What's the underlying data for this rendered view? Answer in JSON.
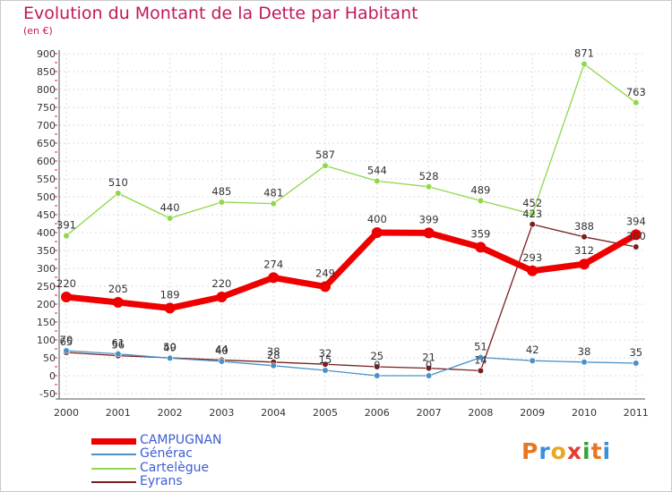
{
  "chart_data": {
    "type": "line",
    "title": "Evolution du Montant de la Dette par Habitant",
    "subtitle": "(en €)",
    "x": [
      "2000",
      "2001",
      "2002",
      "2003",
      "2004",
      "2005",
      "2006",
      "2007",
      "2008",
      "2009",
      "2010",
      "2011"
    ],
    "ylim": [
      -50,
      900
    ],
    "yticks": [
      -50,
      0,
      50,
      100,
      150,
      200,
      250,
      300,
      350,
      400,
      450,
      500,
      550,
      600,
      650,
      700,
      750,
      800,
      850,
      900
    ],
    "grid": true,
    "legend_position": "bottom-left",
    "series": [
      {
        "name": "CAMPUGNAN",
        "color": "#ee0000",
        "values": [
          220,
          205,
          189,
          220,
          274,
          249,
          400,
          399,
          359,
          293,
          312,
          394
        ]
      },
      {
        "name": "Générac",
        "color": "#4a90c8",
        "values": [
          70,
          61,
          49,
          40,
          28,
          15,
          0,
          0,
          51,
          42,
          38,
          35
        ]
      },
      {
        "name": "Cartelègue",
        "color": "#8ed84a",
        "values": [
          391,
          510,
          440,
          485,
          481,
          587,
          544,
          528,
          489,
          452,
          871,
          763
        ]
      },
      {
        "name": "Eyrans",
        "color": "#7a1f1f",
        "values": [
          65,
          56,
          50,
          44,
          38,
          32,
          25,
          21,
          14,
          423,
          388,
          360
        ]
      }
    ]
  },
  "logo": {
    "text": "Proxiti",
    "colors": [
      "#e87722",
      "#3a8fd6",
      "#e8a820",
      "#e63c2e",
      "#3aa23a",
      "#e87722",
      "#3a8fd6"
    ]
  }
}
